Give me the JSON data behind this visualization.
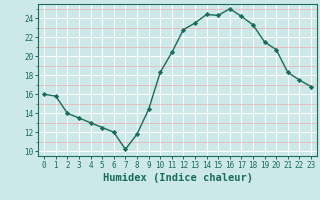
{
  "x": [
    0,
    1,
    2,
    3,
    4,
    5,
    6,
    7,
    8,
    9,
    10,
    11,
    12,
    13,
    14,
    15,
    16,
    17,
    18,
    19,
    20,
    21,
    22,
    23
  ],
  "y": [
    16.0,
    15.8,
    14.0,
    13.5,
    13.0,
    12.5,
    12.0,
    10.2,
    11.8,
    14.4,
    18.3,
    20.4,
    22.8,
    23.5,
    24.4,
    24.3,
    25.0,
    24.2,
    23.3,
    21.5,
    20.7,
    18.3,
    17.5,
    16.8
  ],
  "line_color": "#1a6b5a",
  "marker": "D",
  "marker_size": 2.2,
  "line_width": 1.0,
  "bg_color": "#cce8e8",
  "grid_major_color": "#ffffff",
  "grid_minor_color": "#e8b8b8",
  "xlabel": "Humidex (Indice chaleur)",
  "xlim": [
    -0.5,
    23.5
  ],
  "ylim": [
    9.5,
    25.5
  ],
  "yticks": [
    10,
    12,
    14,
    16,
    18,
    20,
    22,
    24
  ],
  "xticks": [
    0,
    1,
    2,
    3,
    4,
    5,
    6,
    7,
    8,
    9,
    10,
    11,
    12,
    13,
    14,
    15,
    16,
    17,
    18,
    19,
    20,
    21,
    22,
    23
  ],
  "tick_fontsize": 5.5,
  "xlabel_fontsize": 7.5,
  "tick_color": "#1a6b5a",
  "axis_color": "#1a6b5a"
}
